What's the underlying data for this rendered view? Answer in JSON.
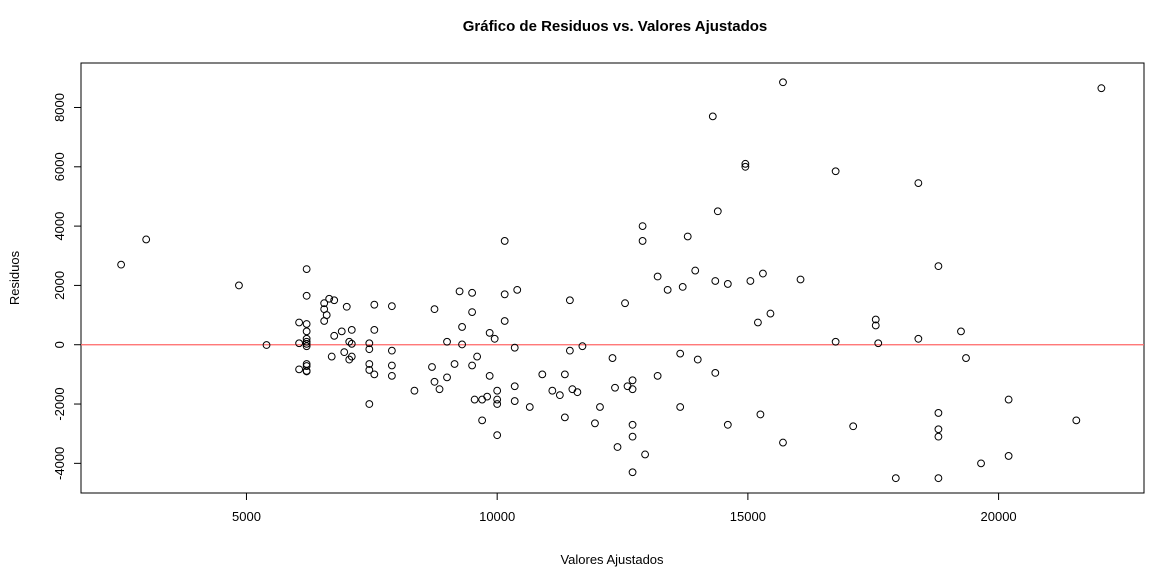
{
  "chart_data": {
    "type": "scatter",
    "title": "Gráfico de Residuos vs. Valores Ajustados",
    "xlabel": "Valores Ajustados",
    "ylabel": "Residuos",
    "xlim": [
      1700,
      22900
    ],
    "ylim": [
      -5000,
      9500
    ],
    "xticks": [
      5000,
      10000,
      15000,
      20000
    ],
    "yticks": [
      -4000,
      -2000,
      0,
      2000,
      4000,
      6000,
      8000
    ],
    "reference_line": {
      "y": 0,
      "color": "#ff6666"
    },
    "grid": false,
    "legend": "none",
    "point_style": "open-circle",
    "points": [
      [
        2500,
        2700
      ],
      [
        3000,
        3550
      ],
      [
        4850,
        2000
      ],
      [
        5400,
        -10
      ],
      [
        6050,
        750
      ],
      [
        6050,
        50
      ],
      [
        6050,
        -830
      ],
      [
        6200,
        2550
      ],
      [
        6200,
        1650
      ],
      [
        6200,
        700
      ],
      [
        6200,
        450
      ],
      [
        6200,
        200
      ],
      [
        6200,
        100
      ],
      [
        6200,
        30
      ],
      [
        6200,
        -50
      ],
      [
        6200,
        -650
      ],
      [
        6200,
        -720
      ],
      [
        6200,
        -880
      ],
      [
        6200,
        -900
      ],
      [
        6550,
        1400
      ],
      [
        6550,
        1200
      ],
      [
        6550,
        800
      ],
      [
        6600,
        1000
      ],
      [
        6650,
        1550
      ],
      [
        6700,
        -400
      ],
      [
        6750,
        1500
      ],
      [
        6750,
        300
      ],
      [
        6900,
        450
      ],
      [
        6950,
        -250
      ],
      [
        7000,
        1280
      ],
      [
        7050,
        100
      ],
      [
        7050,
        -500
      ],
      [
        7100,
        500
      ],
      [
        7100,
        -400
      ],
      [
        7100,
        30
      ],
      [
        7450,
        50
      ],
      [
        7450,
        -150
      ],
      [
        7450,
        -650
      ],
      [
        7450,
        -850
      ],
      [
        7450,
        -2000
      ],
      [
        7550,
        1350
      ],
      [
        7550,
        500
      ],
      [
        7550,
        -1000
      ],
      [
        7900,
        1300
      ],
      [
        7900,
        -200
      ],
      [
        7900,
        -700
      ],
      [
        7900,
        -1050
      ],
      [
        8350,
        -1550
      ],
      [
        8700,
        -750
      ],
      [
        8750,
        1200
      ],
      [
        8750,
        -1250
      ],
      [
        8850,
        -1500
      ],
      [
        9000,
        100
      ],
      [
        9000,
        -1100
      ],
      [
        9150,
        -650
      ],
      [
        9250,
        1800
      ],
      [
        9300,
        600
      ],
      [
        9300,
        10
      ],
      [
        9500,
        1750
      ],
      [
        9500,
        1100
      ],
      [
        9500,
        -700
      ],
      [
        9550,
        -1850
      ],
      [
        9600,
        -400
      ],
      [
        9700,
        -1850
      ],
      [
        9700,
        -2550
      ],
      [
        9800,
        -1750
      ],
      [
        9850,
        400
      ],
      [
        9850,
        -1050
      ],
      [
        9950,
        200
      ],
      [
        10000,
        -1550
      ],
      [
        10000,
        -1850
      ],
      [
        10000,
        -2000
      ],
      [
        10000,
        -3050
      ],
      [
        10150,
        3500
      ],
      [
        10150,
        1700
      ],
      [
        10150,
        800
      ],
      [
        10350,
        -100
      ],
      [
        10350,
        -1400
      ],
      [
        10350,
        -1900
      ],
      [
        10400,
        1850
      ],
      [
        10650,
        -2100
      ],
      [
        10900,
        -1000
      ],
      [
        11100,
        -1550
      ],
      [
        11250,
        -1700
      ],
      [
        11350,
        -1000
      ],
      [
        11350,
        -2450
      ],
      [
        11450,
        1500
      ],
      [
        11450,
        -200
      ],
      [
        11500,
        -1500
      ],
      [
        11600,
        -1600
      ],
      [
        11700,
        -50
      ],
      [
        11950,
        -2650
      ],
      [
        12050,
        -2100
      ],
      [
        12300,
        -450
      ],
      [
        12350,
        -1450
      ],
      [
        12400,
        -3450
      ],
      [
        12550,
        1400
      ],
      [
        12600,
        -1400
      ],
      [
        12700,
        -1200
      ],
      [
        12700,
        -1500
      ],
      [
        12700,
        -2700
      ],
      [
        12700,
        -3100
      ],
      [
        12700,
        -4300
      ],
      [
        12900,
        4000
      ],
      [
        12900,
        3500
      ],
      [
        12950,
        -3700
      ],
      [
        13200,
        2300
      ],
      [
        13200,
        -1050
      ],
      [
        13400,
        1850
      ],
      [
        13650,
        -300
      ],
      [
        13650,
        -2100
      ],
      [
        13700,
        1950
      ],
      [
        13800,
        3650
      ],
      [
        13950,
        2500
      ],
      [
        14000,
        -500
      ],
      [
        14300,
        7700
      ],
      [
        14350,
        2150
      ],
      [
        14350,
        -950
      ],
      [
        14400,
        4500
      ],
      [
        14600,
        2050
      ],
      [
        14600,
        -2700
      ],
      [
        14950,
        6100
      ],
      [
        14950,
        6000
      ],
      [
        15050,
        2150
      ],
      [
        15200,
        750
      ],
      [
        15250,
        -2350
      ],
      [
        15300,
        2400
      ],
      [
        15450,
        1050
      ],
      [
        15700,
        8850
      ],
      [
        15700,
        -3300
      ],
      [
        16050,
        2200
      ],
      [
        16750,
        5850
      ],
      [
        16750,
        100
      ],
      [
        17100,
        -2750
      ],
      [
        17550,
        650
      ],
      [
        17550,
        850
      ],
      [
        17600,
        50
      ],
      [
        18400,
        5450
      ],
      [
        18400,
        200
      ],
      [
        18800,
        -4500
      ],
      [
        18800,
        2650
      ],
      [
        18800,
        -2300
      ],
      [
        18800,
        -2850
      ],
      [
        18800,
        -3100
      ],
      [
        19250,
        450
      ],
      [
        19350,
        -450
      ],
      [
        19650,
        -4000
      ],
      [
        20200,
        -1850
      ],
      [
        20200,
        -3750
      ],
      [
        21550,
        -2550
      ],
      [
        22050,
        8650
      ],
      [
        17950,
        -4500
      ]
    ]
  }
}
